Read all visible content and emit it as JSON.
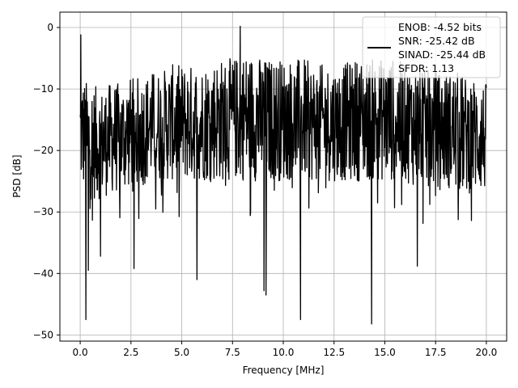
{
  "chart_data": {
    "type": "line",
    "title": "",
    "xlabel": "Frequency [MHz]",
    "ylabel": "PSD [dB]",
    "xlim": [
      -1.0,
      21.0
    ],
    "ylim": [
      -51.0,
      2.5
    ],
    "x_ticks": [
      0.0,
      2.5,
      5.0,
      7.5,
      10.0,
      12.5,
      15.0,
      17.5,
      20.0
    ],
    "x_tick_labels": [
      "0.0",
      "2.5",
      "5.0",
      "7.5",
      "10.0",
      "12.5",
      "15.0",
      "17.5",
      "20.0"
    ],
    "y_ticks": [
      0,
      -10,
      -20,
      -30,
      -40,
      -50
    ],
    "y_tick_labels": [
      "0",
      "−10",
      "−20",
      "−30",
      "−40",
      "−50"
    ],
    "grid": true,
    "legend_position": "top-right",
    "line_color": "#000000",
    "x_range": [
      0.0,
      20.0
    ],
    "envelope": {
      "x": [
        0.0,
        0.5,
        1.0,
        1.5,
        2.0,
        2.5,
        3.0,
        3.5,
        4.0,
        4.5,
        5.0,
        5.5,
        6.0,
        6.5,
        7.0,
        7.5,
        8.0,
        8.5,
        9.0,
        9.5,
        10.0,
        10.5,
        11.0,
        11.5,
        12.0,
        12.5,
        13.0,
        13.5,
        14.0,
        14.5,
        15.0,
        15.5,
        16.0,
        16.5,
        17.0,
        17.5,
        18.0,
        18.5,
        19.0,
        19.5,
        20.0
      ],
      "upper": [
        -8,
        -9,
        -10,
        -9,
        -9,
        -8,
        -8,
        -7,
        -7,
        -6,
        -6,
        -6,
        -6,
        -5,
        -5,
        -5,
        -4,
        -4,
        -5,
        -5,
        -5,
        -5,
        -5,
        -6,
        -6,
        -6,
        -6,
        -5,
        -5,
        -5,
        -5,
        -5,
        -6,
        -6,
        -7,
        -7,
        -7,
        -7,
        -8,
        -8,
        -9
      ],
      "lower": [
        -26,
        -28,
        -28,
        -27,
        -27,
        -26,
        -26,
        -25,
        -25,
        -25,
        -25,
        -25,
        -25,
        -25,
        -25,
        -25,
        -25,
        -25,
        -25,
        -25,
        -25,
        -25,
        -25,
        -25,
        -25,
        -25,
        -25,
        -25,
        -25,
        -25,
        -25,
        -25,
        -25,
        -26,
        -26,
        -26,
        -26,
        -27,
        -27,
        -27,
        -27
      ]
    },
    "peaks": [
      {
        "x": 0.03,
        "y": -1.2
      },
      {
        "x": 7.88,
        "y": 0.2
      }
    ],
    "dips": [
      {
        "x": 0.28,
        "y": -47.5
      },
      {
        "x": 0.4,
        "y": -39.5
      },
      {
        "x": 1.0,
        "y": -37.2
      },
      {
        "x": 2.65,
        "y": -39.2
      },
      {
        "x": 5.75,
        "y": -41.0
      },
      {
        "x": 9.05,
        "y": -42.8
      },
      {
        "x": 9.15,
        "y": -43.5
      },
      {
        "x": 10.85,
        "y": -47.5
      },
      {
        "x": 14.35,
        "y": -48.2
      },
      {
        "x": 16.6,
        "y": -38.8
      }
    ],
    "series": [
      {
        "name": "ENOB: -4.52 bits\nSNR: -25.42 dB\nSINAD: -25.44 dB\nSFDR: 1.13"
      }
    ]
  },
  "legend": {
    "lines": [
      "ENOB: -4.52 bits",
      "SNR: -25.42 dB",
      "SINAD: -25.44 dB",
      "SFDR: 1.13"
    ]
  }
}
